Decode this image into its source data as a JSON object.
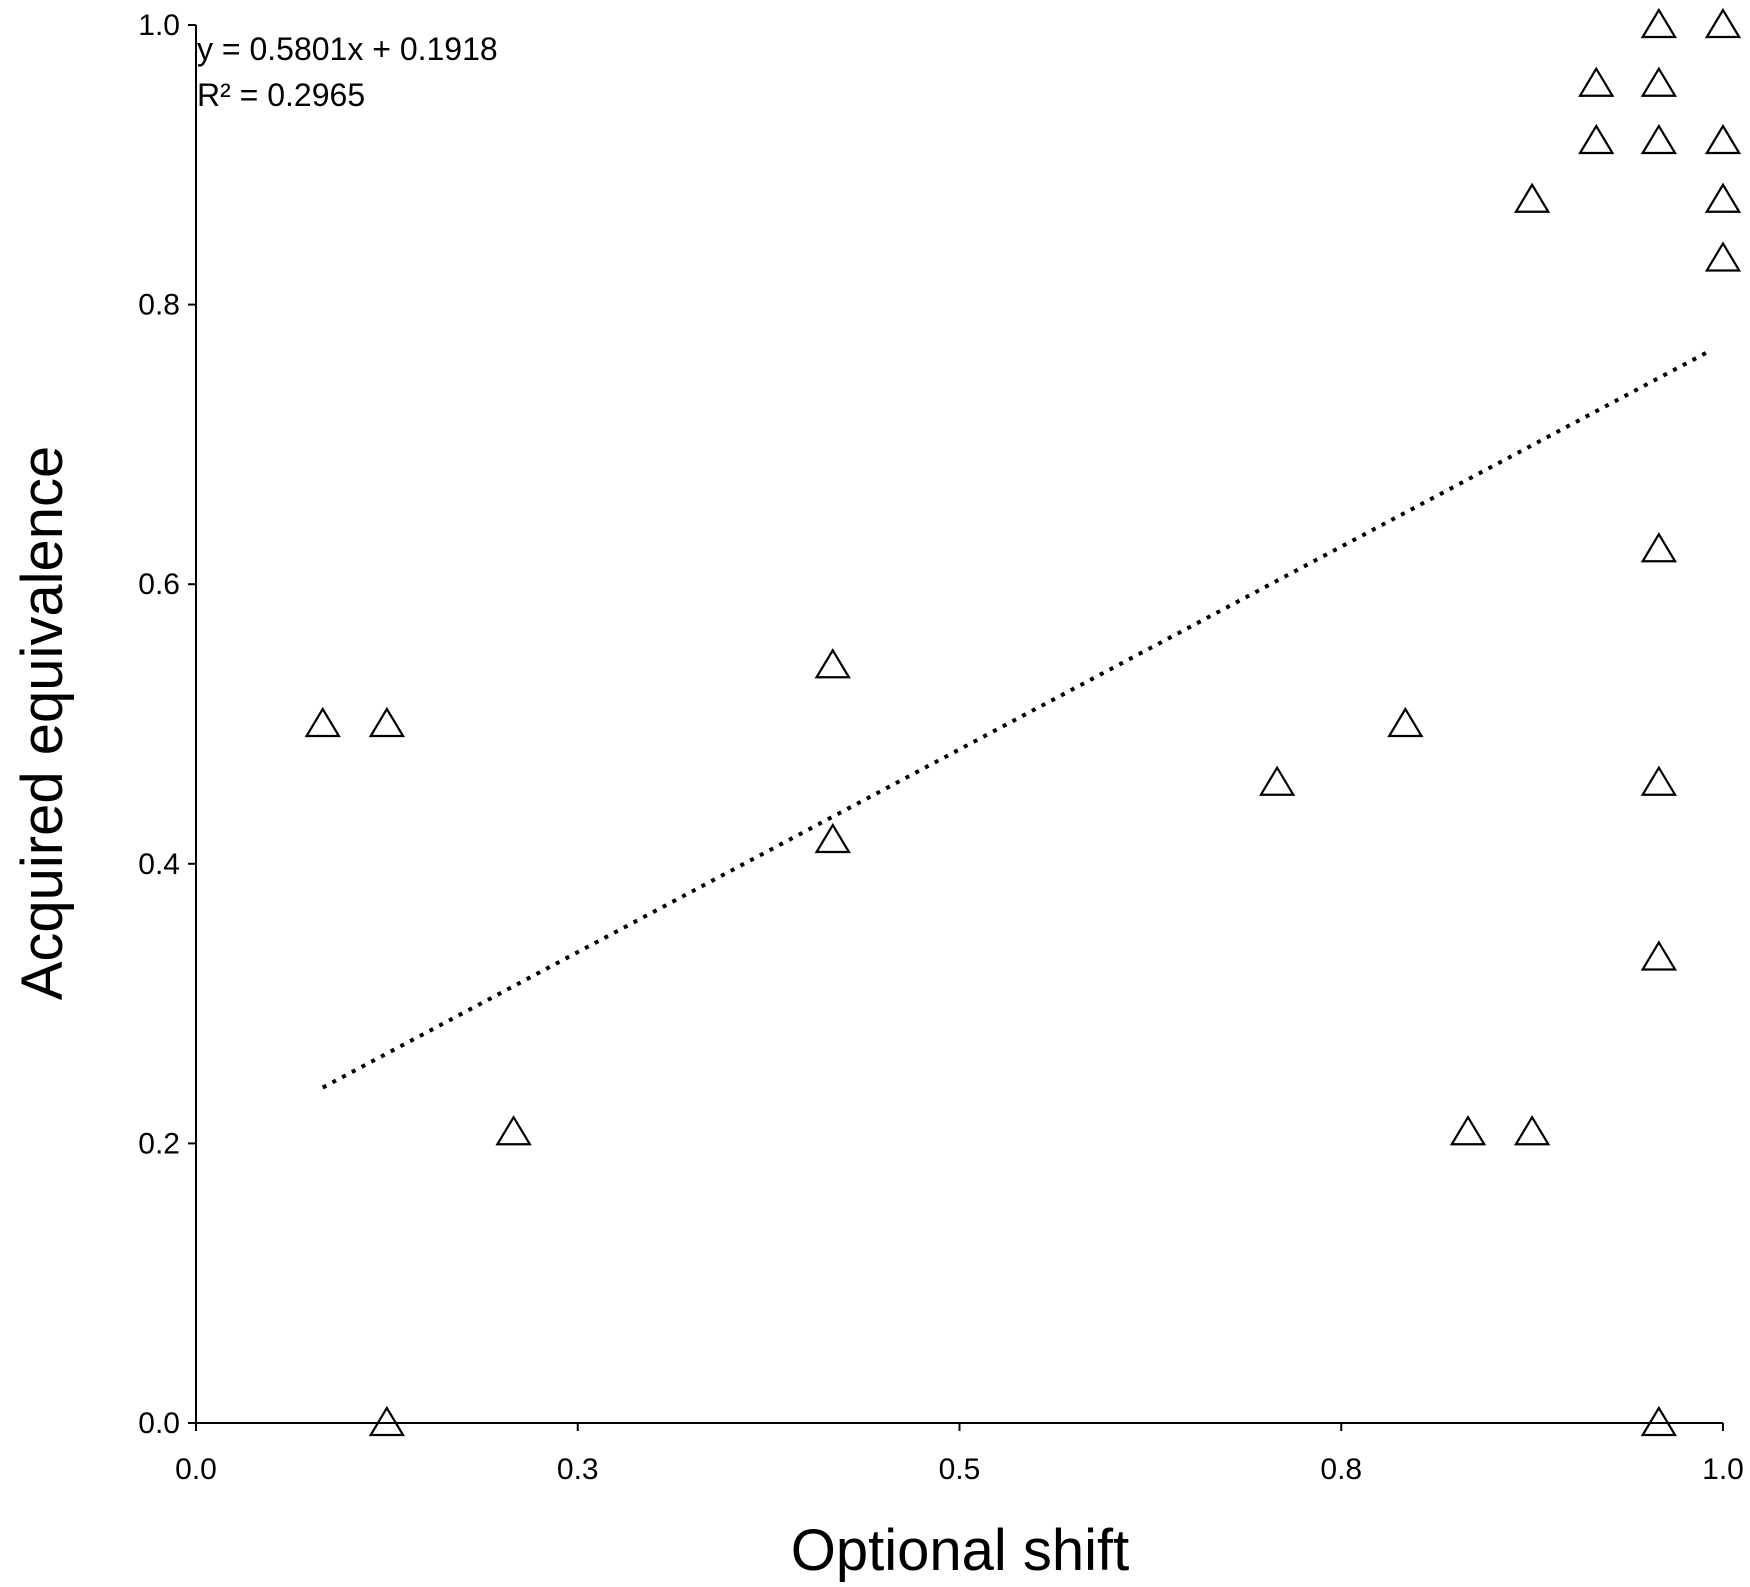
{
  "chart_data": {
    "type": "scatter",
    "title": "",
    "xlabel": "Optional shift",
    "ylabel": "Acquired equivalence",
    "xlim": [
      0,
      1
    ],
    "ylim": [
      0,
      1
    ],
    "x_ticks": [
      {
        "value": 0.0,
        "label": "0.0"
      },
      {
        "value": 0.25,
        "label": "0.3"
      },
      {
        "value": 0.5,
        "label": "0.5"
      },
      {
        "value": 0.75,
        "label": "0.8"
      },
      {
        "value": 1.0,
        "label": "1.0"
      }
    ],
    "y_ticks": [
      {
        "value": 0.0,
        "label": "0.0"
      },
      {
        "value": 0.2,
        "label": "0.2"
      },
      {
        "value": 0.4,
        "label": "0.4"
      },
      {
        "value": 0.6,
        "label": "0.6"
      },
      {
        "value": 0.8,
        "label": "0.8"
      },
      {
        "value": 1.0,
        "label": "1.0"
      }
    ],
    "grid": false,
    "marker": "open-triangle",
    "series": [
      {
        "points": [
          {
            "x": 0.083,
            "y": 0.5
          },
          {
            "x": 0.125,
            "y": 0.5
          },
          {
            "x": 0.125,
            "y": 0.0
          },
          {
            "x": 0.208,
            "y": 0.208
          },
          {
            "x": 0.417,
            "y": 0.542
          },
          {
            "x": 0.417,
            "y": 0.417
          },
          {
            "x": 0.708,
            "y": 0.458
          },
          {
            "x": 0.792,
            "y": 0.5
          },
          {
            "x": 0.833,
            "y": 0.208
          },
          {
            "x": 0.875,
            "y": 0.208
          },
          {
            "x": 0.875,
            "y": 0.875
          },
          {
            "x": 0.917,
            "y": 0.958
          },
          {
            "x": 0.917,
            "y": 0.917
          },
          {
            "x": 0.958,
            "y": 1.0
          },
          {
            "x": 0.958,
            "y": 0.958
          },
          {
            "x": 0.958,
            "y": 0.917
          },
          {
            "x": 0.958,
            "y": 0.625
          },
          {
            "x": 0.958,
            "y": 0.458
          },
          {
            "x": 0.958,
            "y": 0.333
          },
          {
            "x": 0.958,
            "y": 0.0
          },
          {
            "x": 1.0,
            "y": 1.0
          },
          {
            "x": 1.0,
            "y": 0.917
          },
          {
            "x": 1.0,
            "y": 0.875
          },
          {
            "x": 1.0,
            "y": 0.833
          }
        ]
      }
    ],
    "trendline": {
      "type": "linear",
      "style": "dotted",
      "slope": 0.5801,
      "intercept": 0.1918,
      "x_range": [
        0.083,
        0.99
      ]
    },
    "annotations": {
      "equation": "y = 0.5801x + 0.1918",
      "r_squared": "R² = 0.2965"
    }
  }
}
